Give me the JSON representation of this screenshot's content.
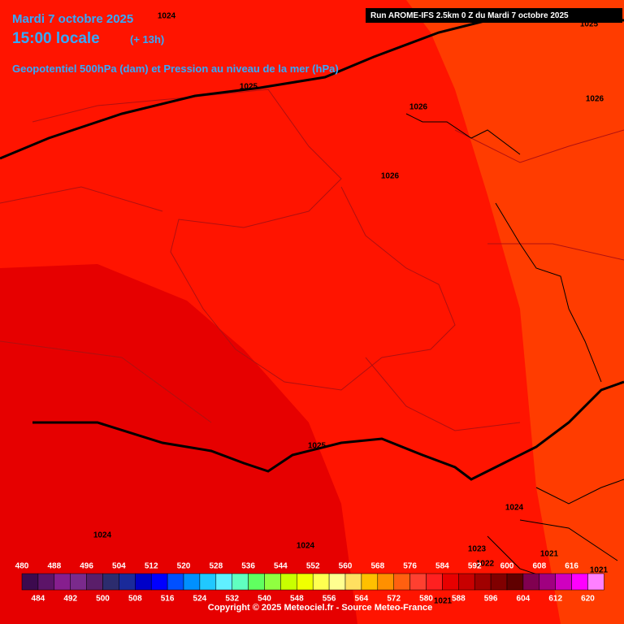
{
  "header": {
    "date": "Mardi 7 octobre 2025",
    "time": "15:00 locale",
    "lead": "(+ 13h)",
    "subtitle": "Geopotentiel 500hPa (dam) et Pression au niveau de la mer (hPa)",
    "run": "Run AROME-IFS 2.5km 0 Z du Mardi 7 octobre 2025"
  },
  "isobar_labels": [
    "1024",
    "1025",
    "1026",
    "1026",
    "1026",
    "1025",
    "1024",
    "1024",
    "1024",
    "1023",
    "1022",
    "1021",
    "1021",
    "1021",
    "1025"
  ],
  "legend": {
    "labels": [
      "480",
      "484",
      "488",
      "492",
      "496",
      "500",
      "504",
      "508",
      "512",
      "516",
      "520",
      "524",
      "528",
      "532",
      "536",
      "540",
      "544",
      "548",
      "552",
      "556",
      "560",
      "564",
      "568",
      "572",
      "576",
      "580",
      "584",
      "588",
      "592",
      "596",
      "600",
      "604",
      "608",
      "612",
      "616",
      "620"
    ],
    "colors": [
      "#3c0a4e",
      "#5c1468",
      "#861e8e",
      "#7a2a8c",
      "#5a1e6a",
      "#2c2c6e",
      "#1a2a9a",
      "#0000c8",
      "#0000ff",
      "#0050ff",
      "#0090ff",
      "#20c8ff",
      "#60f0ff",
      "#60ffc0",
      "#60ff60",
      "#90ff40",
      "#c8ff00",
      "#f0ff00",
      "#ffff50",
      "#ffff90",
      "#ffe060",
      "#ffc000",
      "#ff9000",
      "#ff6010",
      "#ff4030",
      "#ff2020",
      "#e80000",
      "#c80000",
      "#a00000",
      "#800000",
      "#600000",
      "#800050",
      "#a00080",
      "#d000c0",
      "#ff00ff",
      "#ff80ff"
    ]
  },
  "copyright": "Copyright © 2025 Meteociel.fr - Source Meteo-France"
}
